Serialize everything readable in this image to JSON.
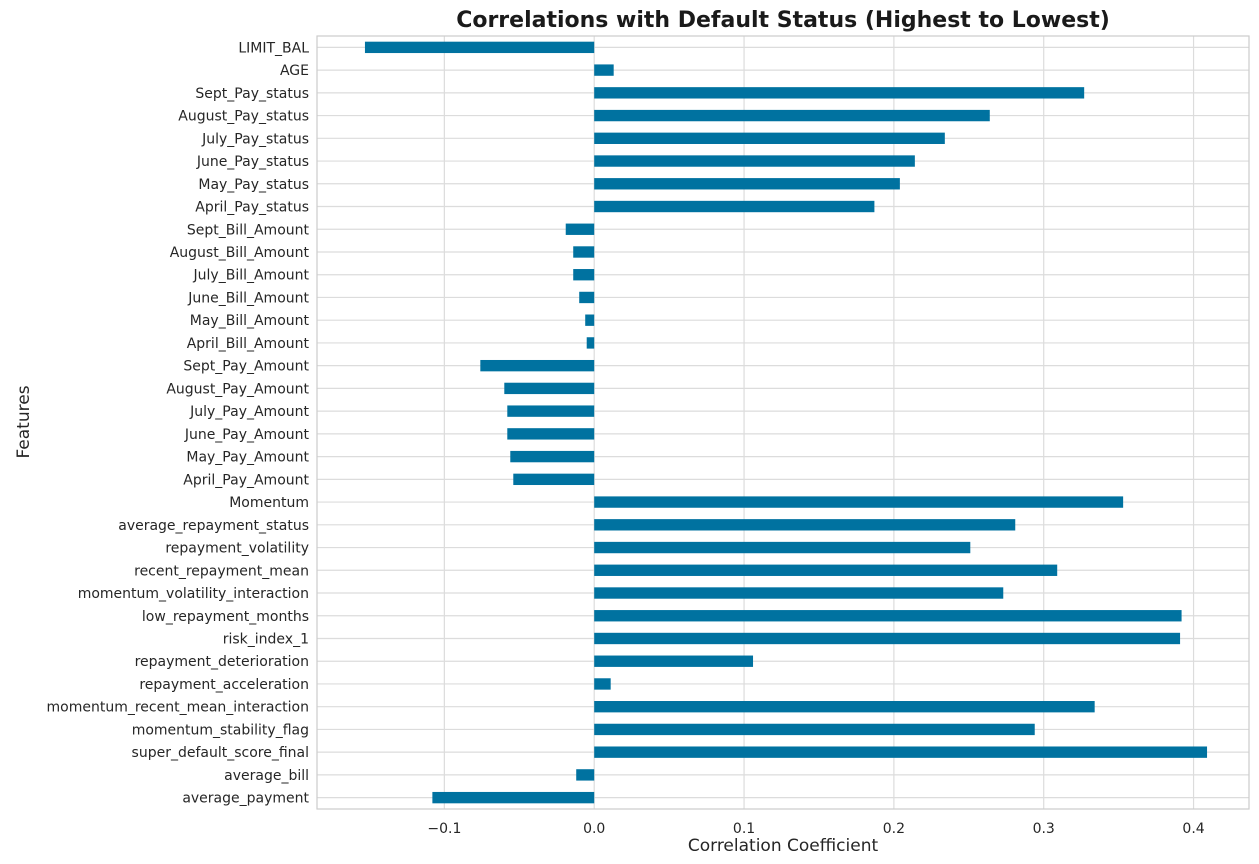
{
  "chart_data": {
    "type": "bar",
    "orientation": "horizontal",
    "title": "Correlations with Default Status (Highest to Lowest)",
    "xlabel": "Correlation Coefficient",
    "ylabel": "Features",
    "xlim": [
      -0.185,
      0.437
    ],
    "xticks": [
      -0.1,
      0.0,
      0.1,
      0.2,
      0.3,
      0.4
    ],
    "xtick_labels": [
      "−0.1",
      "0.0",
      "0.1",
      "0.2",
      "0.3",
      "0.4"
    ],
    "grid": true,
    "bar_color": "#0072a0",
    "categories": [
      "LIMIT_BAL",
      "AGE",
      "Sept_Pay_status",
      "August_Pay_status",
      "July_Pay_status",
      "June_Pay_status",
      "May_Pay_status",
      "April_Pay_status",
      "Sept_Bill_Amount",
      "August_Bill_Amount",
      "July_Bill_Amount",
      "June_Bill_Amount",
      "May_Bill_Amount",
      "April_Bill_Amount",
      "Sept_Pay_Amount",
      "August_Pay_Amount",
      "July_Pay_Amount",
      "June_Pay_Amount",
      "May_Pay_Amount",
      "April_Pay_Amount",
      "Momentum",
      "average_repayment_status",
      "repayment_volatility",
      "recent_repayment_mean",
      "momentum_volatility_interaction",
      "low_repayment_months",
      "risk_index_1",
      "repayment_deterioration",
      "repayment_acceleration",
      "momentum_recent_mean_interaction",
      "momentum_stability_flag",
      "super_default_score_final",
      "average_bill",
      "average_payment"
    ],
    "values": [
      -0.153,
      0.013,
      0.327,
      0.264,
      0.234,
      0.214,
      0.204,
      0.187,
      -0.019,
      -0.014,
      -0.014,
      -0.01,
      -0.006,
      -0.005,
      -0.076,
      -0.06,
      -0.058,
      -0.058,
      -0.056,
      -0.054,
      0.353,
      0.281,
      0.251,
      0.309,
      0.273,
      0.392,
      0.391,
      0.106,
      0.011,
      0.334,
      0.294,
      0.409,
      -0.012,
      -0.108
    ]
  }
}
